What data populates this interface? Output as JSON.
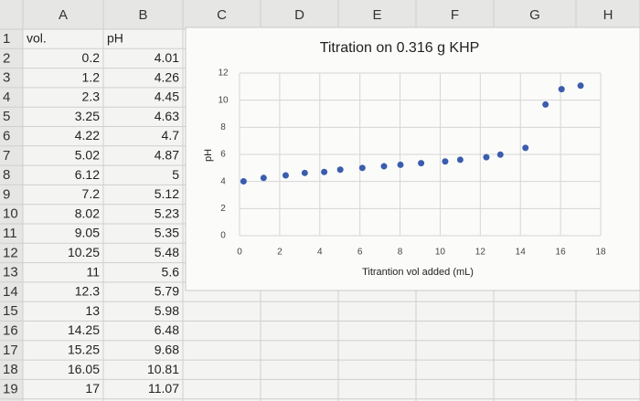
{
  "columns": [
    "A",
    "B",
    "C",
    "D",
    "E",
    "F",
    "G",
    "H"
  ],
  "rows": [
    1,
    2,
    3,
    4,
    5,
    6,
    7,
    8,
    9,
    10,
    11,
    12,
    13,
    14,
    15,
    16,
    17,
    18,
    19
  ],
  "table": {
    "header": [
      "vol.",
      "pH"
    ],
    "rows": [
      [
        0.2,
        4.01
      ],
      [
        1.2,
        4.26
      ],
      [
        2.3,
        4.45
      ],
      [
        3.25,
        4.63
      ],
      [
        4.22,
        4.7
      ],
      [
        5.02,
        4.87
      ],
      [
        6.12,
        5
      ],
      [
        7.2,
        5.12
      ],
      [
        8.02,
        5.23
      ],
      [
        9.05,
        5.35
      ],
      [
        10.25,
        5.48
      ],
      [
        11,
        5.6
      ],
      [
        12.3,
        5.79
      ],
      [
        13,
        5.98
      ],
      [
        14.25,
        6.48
      ],
      [
        15.25,
        9.68
      ],
      [
        16.05,
        10.81
      ],
      [
        17,
        11.07
      ]
    ]
  },
  "chart_data": {
    "type": "scatter",
    "title": "Titration on 0.316 g KHP",
    "x_label": "Titrantion vol added (mL)",
    "y_label": "pH",
    "x": [
      0.2,
      1.2,
      2.3,
      3.25,
      4.22,
      5.02,
      6.12,
      7.2,
      8.02,
      9.05,
      10.25,
      11,
      12.3,
      13,
      14.25,
      15.25,
      16.05,
      17
    ],
    "values": [
      4.01,
      4.26,
      4.45,
      4.63,
      4.7,
      4.87,
      5,
      5.12,
      5.23,
      5.35,
      5.48,
      5.6,
      5.79,
      5.98,
      6.48,
      9.68,
      10.81,
      11.07
    ],
    "xlim": [
      0,
      18
    ],
    "ylim": [
      0,
      12
    ],
    "xticks": [
      0,
      2,
      4,
      6,
      8,
      10,
      12,
      14,
      16,
      18
    ],
    "yticks": [
      0,
      2,
      4,
      6,
      8,
      10,
      12
    ],
    "grid": true,
    "color": "#3a5dae"
  }
}
